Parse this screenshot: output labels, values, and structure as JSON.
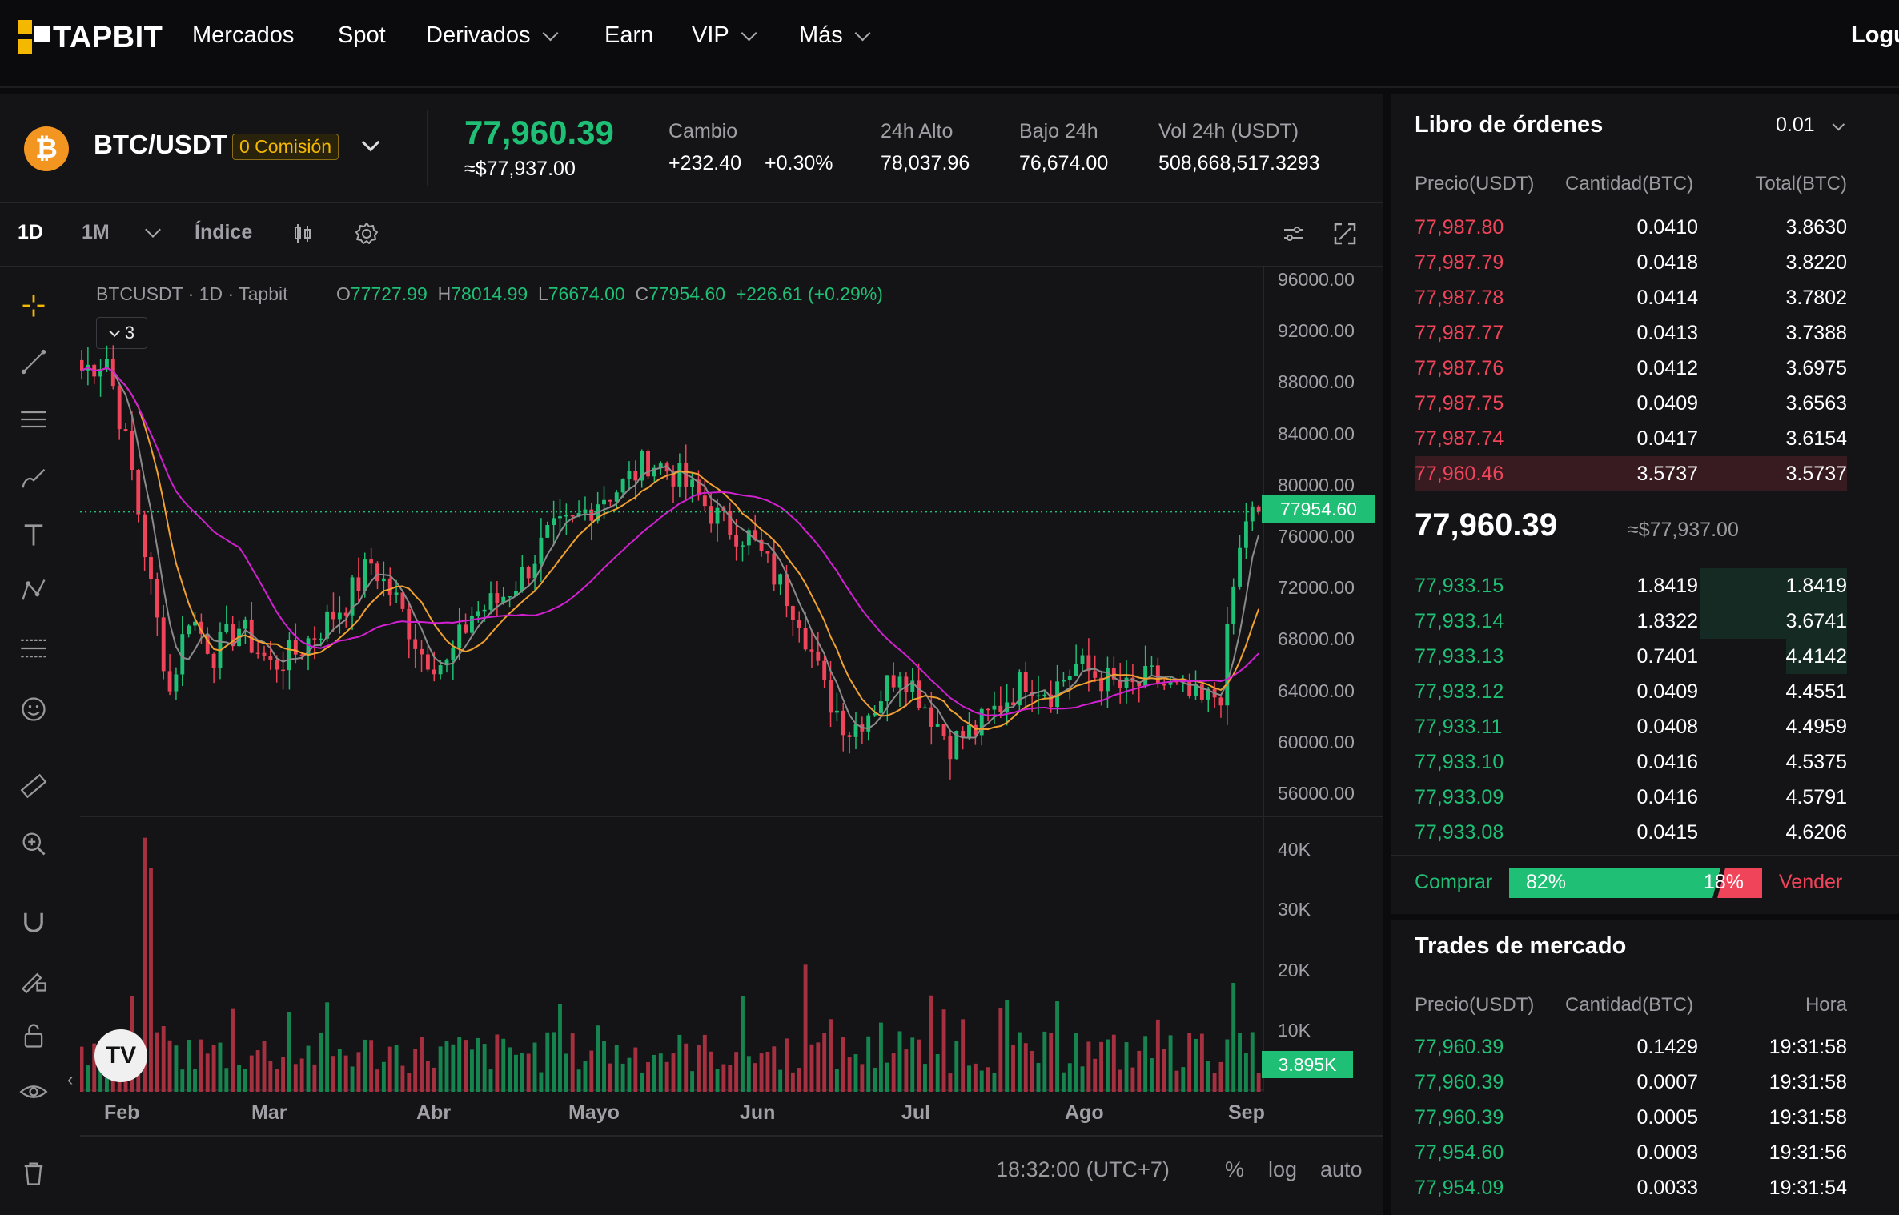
{
  "nav": {
    "logo_text": "TAPBIT",
    "items": [
      {
        "label": "Mercados",
        "dropdown": false
      },
      {
        "label": "Spot",
        "dropdown": false
      },
      {
        "label": "Derivados",
        "dropdown": true
      },
      {
        "label": "Earn",
        "dropdown": false
      },
      {
        "label": "VIP",
        "dropdown": true
      },
      {
        "label": "Más",
        "dropdown": true
      }
    ],
    "login_label": "Logu"
  },
  "ticker": {
    "coin_icon": "bitcoin-icon",
    "coin_glyph": "₿",
    "pair": "BTC/USDT",
    "fee_badge": "0 Comisión",
    "last_price": "77,960.39",
    "last_price_usd": "≈$77,937.00",
    "change_label": "Cambio",
    "change_abs": "+232.40",
    "change_pct": "+0.30%",
    "high_label": "24h Alto",
    "high_value": "78,037.96",
    "low_label": "Bajo 24h",
    "low_value": "76,674.00",
    "vol_label": "Vol 24h (USDT)",
    "vol_value": "508,668,517.3293"
  },
  "chart_toolbar": {
    "interval_1d": "1D",
    "interval_1m": "1M",
    "index_label": "Índice",
    "icons": [
      "candles-icon",
      "settings-gear-icon",
      "sliders-icon",
      "fullscreen-icon"
    ]
  },
  "chart_legend": {
    "symbol": "BTCUSDT",
    "sep1": "·",
    "interval": "1D",
    "sep2": "·",
    "source": "Tapbit",
    "o_label": "O",
    "o_value": "77727.99",
    "h_label": "H",
    "h_value": "78014.99",
    "l_label": "L",
    "l_value": "76674.00",
    "c_label": "C",
    "c_value": "77954.60",
    "change": "+226.61 (+0.29%)",
    "indicators_count": "3"
  },
  "chart_data": {
    "type": "candlestick",
    "price_axis_ticks": [
      "96000.00",
      "92000.00",
      "88000.00",
      "84000.00",
      "80000.00",
      "76000.00",
      "72000.00",
      "68000.00",
      "64000.00",
      "60000.00",
      "56000.00"
    ],
    "price_range": [
      54000,
      97000
    ],
    "current_price_label": "77954.60",
    "volume_axis_ticks": [
      "40K",
      "30K",
      "20K",
      "10K"
    ],
    "volume_range": [
      0,
      45000
    ],
    "current_volume_label": "3.895K",
    "x_axis_labels": [
      "Feb",
      "Mar",
      "Abr",
      "Mayo",
      "Jun",
      "Jul",
      "Ago",
      "Sep"
    ],
    "close_anchors": [
      [
        0,
        89000
      ],
      [
        4,
        90000
      ],
      [
        8,
        81000
      ],
      [
        11,
        72000
      ],
      [
        14,
        64000
      ],
      [
        17,
        70000
      ],
      [
        21,
        67000
      ],
      [
        25,
        69000
      ],
      [
        30,
        66000
      ],
      [
        34,
        67000
      ],
      [
        38,
        69000
      ],
      [
        42,
        71000
      ],
      [
        46,
        74000
      ],
      [
        50,
        71000
      ],
      [
        54,
        67000
      ],
      [
        58,
        66000
      ],
      [
        62,
        70000
      ],
      [
        66,
        71000
      ],
      [
        70,
        73000
      ],
      [
        74,
        76000
      ],
      [
        78,
        77000
      ],
      [
        82,
        79000
      ],
      [
        86,
        80000
      ],
      [
        90,
        82000
      ],
      [
        94,
        81000
      ],
      [
        98,
        79000
      ],
      [
        102,
        77000
      ],
      [
        106,
        76000
      ],
      [
        110,
        73000
      ],
      [
        114,
        70000
      ],
      [
        118,
        64000
      ],
      [
        122,
        61000
      ],
      [
        126,
        63000
      ],
      [
        130,
        66000
      ],
      [
        134,
        63000
      ],
      [
        138,
        60000
      ],
      [
        142,
        61000
      ],
      [
        146,
        63000
      ],
      [
        150,
        65000
      ],
      [
        154,
        64000
      ],
      [
        158,
        66000
      ],
      [
        162,
        65000
      ],
      [
        166,
        64000
      ],
      [
        170,
        65000
      ],
      [
        174,
        64000
      ],
      [
        178,
        63000
      ],
      [
        181,
        64000
      ],
      [
        183,
        72000
      ],
      [
        185,
        77500
      ],
      [
        187,
        77954
      ]
    ],
    "volume_peaks": [
      [
        10,
        42000
      ],
      [
        11,
        37000
      ],
      [
        115,
        21000
      ],
      [
        130,
        10000
      ],
      [
        140,
        12000
      ],
      [
        183,
        18000
      ]
    ],
    "ma_lines": [
      {
        "name": "MA short",
        "color": "#8a8a8a"
      },
      {
        "name": "MA mid",
        "color": "#f0a030"
      },
      {
        "name": "MA long",
        "color": "#d020d0"
      }
    ],
    "grid": false
  },
  "chart_footer": {
    "time": "18:32:00 (UTC+7)",
    "percent": "%",
    "log": "log",
    "auto": "auto"
  },
  "left_tools": [
    "crosshair-icon",
    "trend-line-icon",
    "horizontal-lines-icon",
    "brush-icon",
    "text-icon",
    "pattern-icon",
    "fib-icon",
    "emoji-icon",
    "ruler-icon",
    "zoom-in-icon",
    "magnet-icon",
    "lock-drawing-icon",
    "lock-icon",
    "eye-icon",
    "trash-icon"
  ],
  "orderbook": {
    "title": "Libro de órdenes",
    "precision": "0.01",
    "col_price": "Precio(USDT)",
    "col_qty": "Cantidad(BTC)",
    "col_total": "Total(BTC)",
    "asks": [
      {
        "price": "77,987.80",
        "qty": "0.0410",
        "total": "3.8630",
        "depth": 0.0
      },
      {
        "price": "77,987.79",
        "qty": "0.0418",
        "total": "3.8220",
        "depth": 0.0
      },
      {
        "price": "77,987.78",
        "qty": "0.0414",
        "total": "3.7802",
        "depth": 0.0
      },
      {
        "price": "77,987.77",
        "qty": "0.0413",
        "total": "3.7388",
        "depth": 0.0
      },
      {
        "price": "77,987.76",
        "qty": "0.0412",
        "total": "3.6975",
        "depth": 0.0
      },
      {
        "price": "77,987.75",
        "qty": "0.0409",
        "total": "3.6563",
        "depth": 0.0
      },
      {
        "price": "77,987.74",
        "qty": "0.0417",
        "total": "3.6154",
        "depth": 0.0
      },
      {
        "price": "77,960.46",
        "qty": "3.5737",
        "total": "3.5737",
        "depth": 1.0
      }
    ],
    "mid_price": "77,960.39",
    "mid_price_usd": "≈$77,937.00",
    "bids": [
      {
        "price": "77,933.15",
        "qty": "1.8419",
        "total": "1.8419",
        "depth": 0.34
      },
      {
        "price": "77,933.14",
        "qty": "1.8322",
        "total": "3.6741",
        "depth": 0.34
      },
      {
        "price": "77,933.13",
        "qty": "0.7401",
        "total": "4.4142",
        "depth": 0.14
      },
      {
        "price": "77,933.12",
        "qty": "0.0409",
        "total": "4.4551",
        "depth": 0.0
      },
      {
        "price": "77,933.11",
        "qty": "0.0408",
        "total": "4.4959",
        "depth": 0.0
      },
      {
        "price": "77,933.10",
        "qty": "0.0416",
        "total": "4.5375",
        "depth": 0.0
      },
      {
        "price": "77,933.09",
        "qty": "0.0416",
        "total": "4.5791",
        "depth": 0.0
      },
      {
        "price": "77,933.08",
        "qty": "0.0415",
        "total": "4.6206",
        "depth": 0.0
      }
    ],
    "buy_label": "Comprar",
    "buy_pct": "82%",
    "buy_ratio": 0.82,
    "sell_pct": "18%",
    "sell_label": "Vender"
  },
  "trades": {
    "title": "Trades de mercado",
    "col_price": "Precio(USDT)",
    "col_qty": "Cantidad(BTC)",
    "col_time": "Hora",
    "rows": [
      {
        "price": "77,960.39",
        "qty": "0.1429",
        "time": "19:31:58"
      },
      {
        "price": "77,960.39",
        "qty": "0.0007",
        "time": "19:31:58"
      },
      {
        "price": "77,960.39",
        "qty": "0.0005",
        "time": "19:31:58"
      },
      {
        "price": "77,954.60",
        "qty": "0.0003",
        "time": "19:31:56"
      },
      {
        "price": "77,954.09",
        "qty": "0.0033",
        "time": "19:31:54"
      }
    ]
  },
  "colors": {
    "up": "#1fbf75",
    "down": "#f0445a",
    "brand": "#f5b800",
    "bg": "#0b0b0d",
    "panel": "#141416"
  }
}
